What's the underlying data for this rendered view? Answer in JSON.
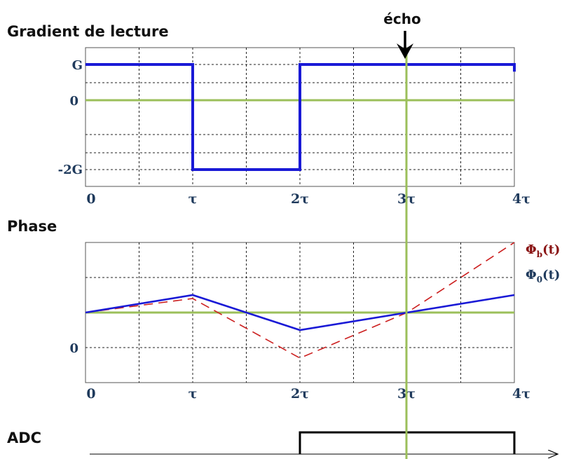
{
  "titles": {
    "gradient": "Gradient de lecture",
    "phase": "Phase",
    "adc": "ADC"
  },
  "echo_label": "écho",
  "x_ticks": [
    "0",
    "τ",
    "2τ",
    "3τ",
    "4τ"
  ],
  "gradient_y_labels": [
    "G",
    "0",
    "-2G"
  ],
  "phase_y_labels": [
    "0"
  ],
  "series_labels": {
    "phi_b": "Φb(t)",
    "phi_0": "Φ0(t)"
  },
  "colors": {
    "gradient_line": "#1a1ad6",
    "zero_line": "#9bbf5a",
    "echo_line": "#9bbf5a",
    "phi_0": "#1a1ad6",
    "phi_b": "#cc1f1f",
    "adc_line": "#000000",
    "axis_text": "#1f3a5c",
    "phi_b_label": "#8a1515",
    "phi_0_label": "#1f3a5c"
  },
  "chart_data": [
    {
      "type": "line",
      "title": "Gradient de lecture",
      "x_ticks": [
        "0",
        "τ",
        "2τ",
        "3τ",
        "4τ"
      ],
      "ylim": [
        -2.5,
        1.1
      ],
      "grid": true,
      "series": [
        {
          "points": [
            [
              0,
              1
            ],
            [
              1,
              1
            ],
            [
              1,
              -2
            ],
            [
              2,
              -2
            ],
            [
              2,
              1
            ],
            [
              4,
              1
            ],
            [
              4,
              0.8
            ]
          ]
        }
      ]
    },
    {
      "type": "line",
      "title": "Phase",
      "x_ticks": [
        "0",
        "τ",
        "2τ",
        "3τ",
        "4τ"
      ],
      "ylim": [
        -1.0,
        4.0
      ],
      "grid": true,
      "series": [
        {
          "name": "Φ0(t)",
          "points": [
            [
              0,
              1.0
            ],
            [
              1,
              1.5
            ],
            [
              2,
              0.5
            ],
            [
              3,
              1.0
            ],
            [
              4,
              1.5
            ]
          ]
        },
        {
          "name": "Φb(t)",
          "points": [
            [
              0,
              1.0
            ],
            [
              1,
              1.4
            ],
            [
              2,
              -0.3
            ],
            [
              3,
              1.0
            ],
            [
              4,
              3.0
            ]
          ]
        }
      ]
    },
    {
      "type": "line",
      "title": "ADC",
      "series": [
        {
          "points": [
            [
              0,
              0
            ],
            [
              2,
              0
            ],
            [
              2,
              1
            ],
            [
              4,
              1
            ],
            [
              4,
              0
            ],
            [
              4.4,
              0
            ]
          ]
        }
      ]
    }
  ]
}
